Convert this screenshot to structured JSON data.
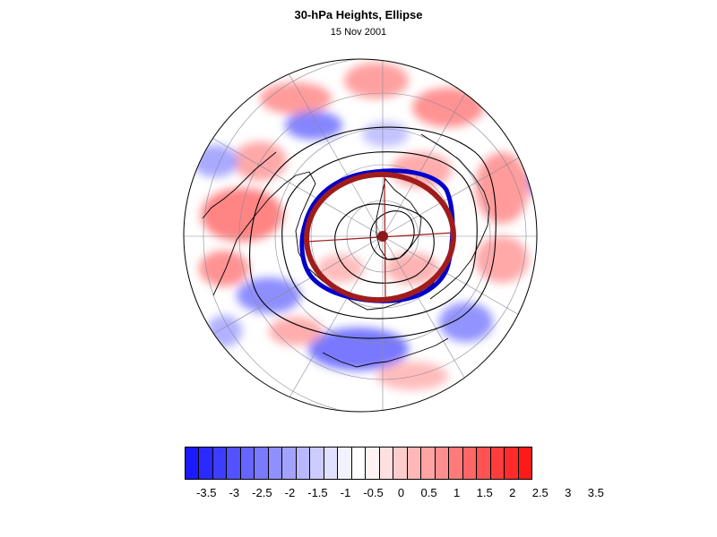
{
  "header": {
    "title": "30-hPa Heights, Ellipse",
    "subtitle": "15 Nov 2001"
  },
  "map": {
    "projection": "north-polar-stereographic",
    "observed_ellipse_color": "#0000cc",
    "fitted_ellipse_color": "#a01c1c",
    "contour_color": "#000000",
    "gridline_color": "#8a8a9a"
  },
  "colorbar": {
    "colors": [
      "#1a1aff",
      "#2a2aff",
      "#3d3dff",
      "#5252ff",
      "#6666ff",
      "#7a7aff",
      "#8f8fff",
      "#a3a3ff",
      "#b8b8ff",
      "#ccccff",
      "#e0e0ff",
      "#f2f2ff",
      "#ffffff",
      "#fff2f2",
      "#ffe0e0",
      "#ffcccc",
      "#ffb8b8",
      "#ffa3a3",
      "#ff8f8f",
      "#ff7a7a",
      "#ff6666",
      "#ff5252",
      "#ff3d3d",
      "#ff2a2a",
      "#ff1a1a"
    ],
    "tick_labels": [
      "-3.5",
      "-3",
      "-2.5",
      "-2",
      "-1.5",
      "-1",
      "-0.5",
      "0",
      "0.5",
      "1",
      "1.5",
      "2",
      "2.5",
      "3",
      "3.5"
    ]
  }
}
